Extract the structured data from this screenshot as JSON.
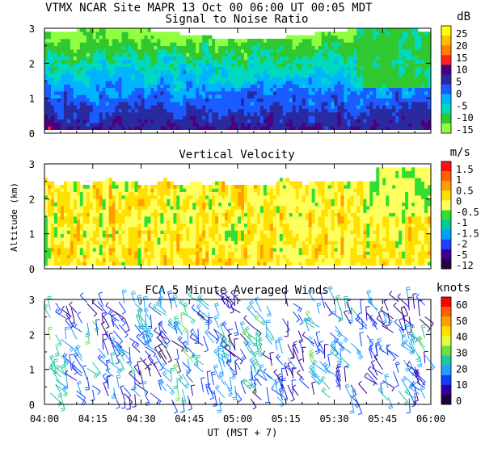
{
  "header": {
    "title": "VTMX  NCAR Site  MAPR 13 Oct 00  06:00 UT  00:05  MDT"
  },
  "xaxis": {
    "tick_labels": [
      "04:00",
      "04:15",
      "04:30",
      "04:45",
      "05:00",
      "05:15",
      "05:30",
      "05:45",
      "06:00"
    ],
    "label": "UT  (MST + 7)"
  },
  "yaxis_label": "Altitude (km)",
  "chart_data": [
    {
      "id": "snr",
      "type": "heatmap",
      "title": "Signal to Noise Ratio",
      "xlabel": "UT  (MST + 7)",
      "ylabel": "",
      "x_range": [
        "04:00",
        "06:00"
      ],
      "ylim": [
        0,
        3
      ],
      "y_ticks": [
        "0",
        "1",
        "2",
        "3"
      ],
      "colorbar": {
        "unit": "dB",
        "labels": [
          "25",
          "20",
          "15",
          "10",
          "5",
          "0",
          "-5",
          "-10",
          "-15"
        ],
        "colors": [
          "#ffff00",
          "#ffc000",
          "#ff8000",
          "#ff2020",
          "#4a0080",
          "#2a2aa0",
          "#1a5cff",
          "#00b4ff",
          "#00d8c0",
          "#30c830",
          "#90ff40"
        ]
      }
    },
    {
      "id": "vv",
      "type": "heatmap",
      "title": "Vertical Velocity",
      "xlabel": "UT  (MST + 7)",
      "ylabel": "Altitude (km)",
      "x_range": [
        "04:00",
        "06:00"
      ],
      "ylim": [
        0,
        3
      ],
      "y_ticks": [
        "0",
        "1",
        "2",
        "3"
      ],
      "colorbar": {
        "unit": "m/s",
        "labels": [
          "1.5",
          "1",
          "0.5",
          "0",
          "-0.5",
          "-1",
          "-1.5",
          "-2",
          "-5",
          "-12"
        ],
        "colors": [
          "#ff1010",
          "#ff6000",
          "#ffa000",
          "#ffe000",
          "#ffff60",
          "#30e030",
          "#00c8a0",
          "#00a0ff",
          "#2040ff",
          "#3a0090",
          "#2a0040"
        ]
      }
    },
    {
      "id": "winds",
      "type": "scatter",
      "subtype": "wind-barbs",
      "title": "FCA 5 Minute Averaged Winds",
      "xlabel": "UT  (MST + 7)",
      "ylabel": "",
      "x_range": [
        "04:00",
        "06:00"
      ],
      "ylim": [
        0,
        3
      ],
      "y_ticks": [
        "0",
        "1",
        "2",
        "3"
      ],
      "colorbar": {
        "unit": "knots",
        "labels": [
          "60",
          "50",
          "40",
          "30",
          "20",
          "10",
          "0"
        ],
        "colors": [
          "#ff0000",
          "#ff6000",
          "#ffa000",
          "#ffe000",
          "#e0ff40",
          "#70e040",
          "#20c8a0",
          "#20a0ff",
          "#1040ff",
          "#3000a0",
          "#200040"
        ]
      }
    }
  ]
}
